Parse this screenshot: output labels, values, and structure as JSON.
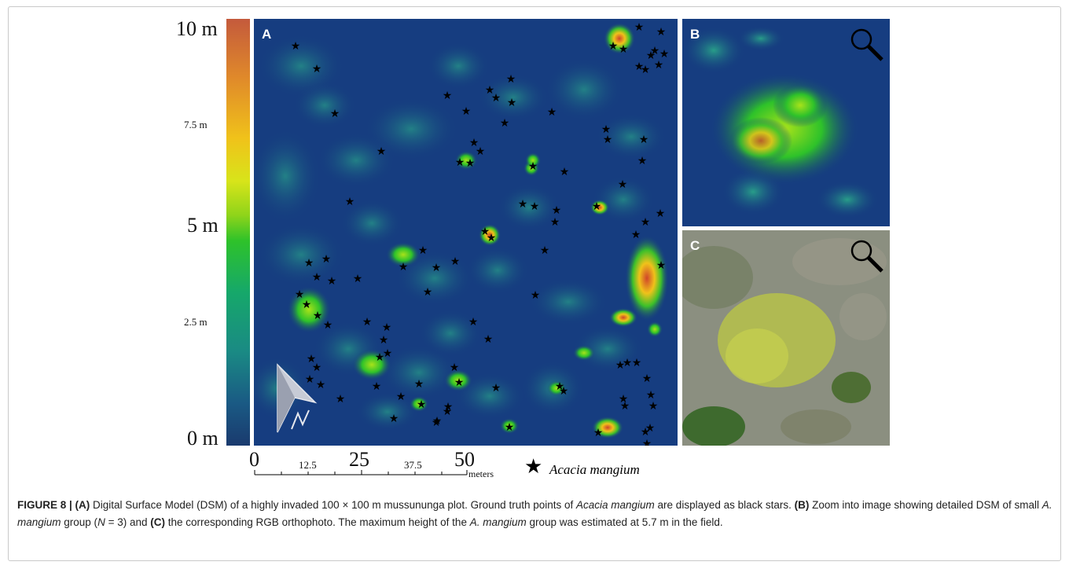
{
  "figure": {
    "colorbar": {
      "labels": [
        "10 m",
        "7.5 m",
        "5 m",
        "2.5 m",
        "0 m"
      ]
    },
    "panels": {
      "a": "A",
      "b": "B",
      "c": "C"
    },
    "scale_bar": {
      "major": [
        "0",
        "25",
        "50"
      ],
      "minor": [
        "12.5",
        "37.5"
      ],
      "unit": "meters"
    },
    "legend": {
      "symbol": "★",
      "label": "Acacia mangium"
    },
    "caption": {
      "prefix": "FIGURE 8 | (A)",
      "part1": " Digital Surface Model (DSM) of a highly invaded 100 × 100 m mussununga plot. Ground truth points of ",
      "species": "Acacia mangium",
      "part2": " are displayed as black stars. ",
      "b_label": "(B)",
      "part3": " Zoom into image showing detailed DSM of small ",
      "species_short": "A. mangium",
      "part4": " group (",
      "n_var": "N",
      "part5": " = 3) and ",
      "c_label": "(C)",
      "part6": " the corresponding RGB orthophoto. The maximum height of the ",
      "species_short2": "A. mangium",
      "part7": " group was estimated at 5.7 m in the field."
    },
    "icons": {
      "zoom": "magnifier-icon",
      "north": "north-arrow-icon",
      "marker": "star-icon"
    }
  }
}
